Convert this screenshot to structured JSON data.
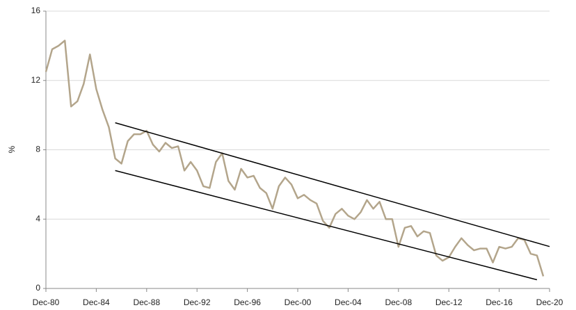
{
  "chart_data": {
    "type": "line",
    "y_label": "%",
    "x": [
      1980.92,
      1981.42,
      1981.92,
      1982.42,
      1982.92,
      1983.42,
      1983.92,
      1984.42,
      1984.92,
      1985.42,
      1985.92,
      1986.42,
      1986.92,
      1987.42,
      1987.92,
      1988.42,
      1988.92,
      1989.42,
      1989.92,
      1990.42,
      1990.92,
      1991.42,
      1991.92,
      1992.42,
      1992.92,
      1993.42,
      1993.92,
      1994.42,
      1994.92,
      1995.42,
      1995.92,
      1996.42,
      1996.92,
      1997.42,
      1997.92,
      1998.42,
      1998.92,
      1999.42,
      1999.92,
      2000.42,
      2000.92,
      2001.42,
      2001.92,
      2002.42,
      2002.92,
      2003.42,
      2003.92,
      2004.42,
      2004.92,
      2005.42,
      2005.92,
      2006.42,
      2006.92,
      2007.42,
      2007.92,
      2008.42,
      2008.92,
      2009.42,
      2009.92,
      2010.42,
      2010.92,
      2011.42,
      2011.92,
      2012.42,
      2012.92,
      2013.42,
      2013.92,
      2014.42,
      2014.92,
      2015.42,
      2015.92,
      2016.42,
      2016.92,
      2017.42,
      2017.92,
      2018.42,
      2018.92,
      2019.42,
      2019.92,
      2020.42
    ],
    "series": [
      {
        "color": "#b3a58b",
        "values": [
          12.5,
          13.8,
          14.0,
          14.3,
          10.5,
          10.8,
          11.8,
          13.5,
          11.5,
          10.3,
          9.3,
          7.5,
          7.2,
          8.5,
          8.9,
          8.9,
          9.1,
          8.3,
          7.9,
          8.4,
          8.1,
          8.2,
          6.8,
          7.3,
          6.8,
          5.9,
          5.8,
          7.3,
          7.8,
          6.2,
          5.7,
          6.9,
          6.4,
          6.5,
          5.8,
          5.5,
          4.6,
          5.9,
          6.4,
          6.0,
          5.2,
          5.4,
          5.1,
          4.9,
          3.9,
          3.5,
          4.3,
          4.6,
          4.2,
          4.0,
          4.4,
          5.1,
          4.6,
          5.0,
          4.0,
          4.0,
          2.4,
          3.5,
          3.6,
          3.0,
          3.3,
          3.2,
          1.9,
          1.6,
          1.8,
          2.4,
          2.9,
          2.5,
          2.2,
          2.3,
          2.3,
          1.5,
          2.4,
          2.3,
          2.4,
          2.9,
          2.8,
          2.0,
          1.9,
          0.7
        ]
      }
    ],
    "trend_lines": [
      {
        "color": "#000000",
        "x": [
          1986.42,
          2020.92
        ],
        "values": [
          9.56,
          2.42
        ]
      },
      {
        "color": "#000000",
        "x": [
          1986.42,
          2019.92
        ],
        "values": [
          6.8,
          0.5
        ]
      }
    ],
    "xlim": [
      1980.92,
      2020.92
    ],
    "xticks": [
      {
        "value": 1980.92,
        "label": "Dec-80"
      },
      {
        "value": 1984.92,
        "label": "Dec-84"
      },
      {
        "value": 1988.92,
        "label": "Dec-88"
      },
      {
        "value": 1992.92,
        "label": "Dec-92"
      },
      {
        "value": 1996.92,
        "label": "Dec-96"
      },
      {
        "value": 2000.92,
        "label": "Dec-00"
      },
      {
        "value": 2004.92,
        "label": "Dec-04"
      },
      {
        "value": 2008.92,
        "label": "Dec-08"
      },
      {
        "value": 2012.92,
        "label": "Dec-12"
      },
      {
        "value": 2016.92,
        "label": "Dec-16"
      },
      {
        "value": 2020.92,
        "label": "Dec-20"
      }
    ],
    "ylim": [
      0,
      16
    ],
    "yticks": [
      0,
      4,
      8,
      12,
      16
    ],
    "grid": true
  }
}
